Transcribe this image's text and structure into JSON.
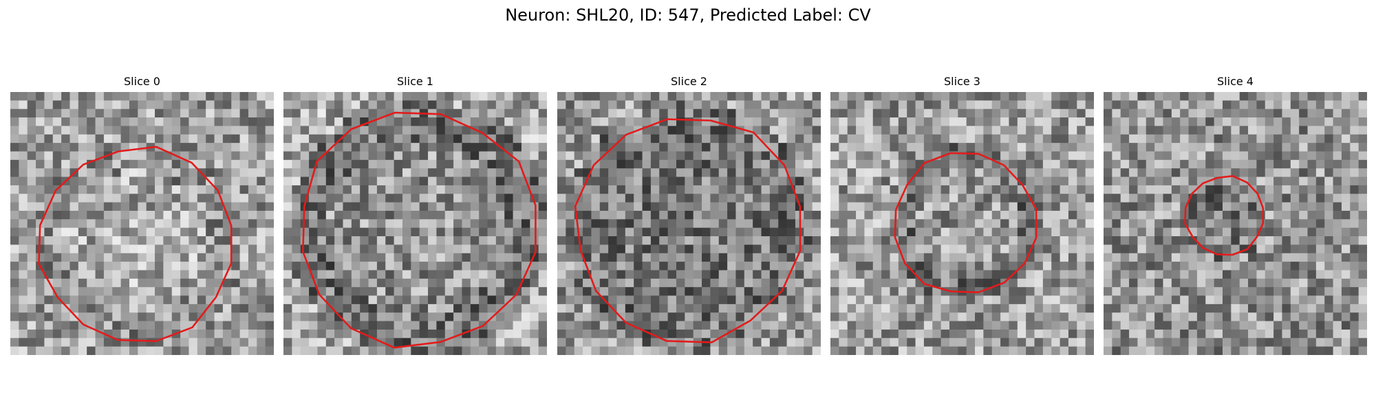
{
  "figure": {
    "title": "Neuron: SHL20, ID: 547, Predicted Label: CV",
    "outline_color": "#e31b1b"
  },
  "slices": [
    {
      "title": "Slice 0"
    },
    {
      "title": "Slice 1"
    },
    {
      "title": "Slice 2"
    },
    {
      "title": "Slice 3"
    },
    {
      "title": "Slice 4"
    }
  ]
}
